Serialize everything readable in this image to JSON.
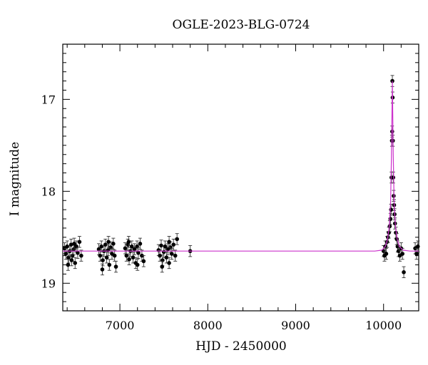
{
  "chart_data": {
    "type": "scatter",
    "title": "OGLE-2023-BLG-0724",
    "xlabel": "HJD - 2450000",
    "ylabel": "I magnitude",
    "xlim": [
      6350,
      10400
    ],
    "ylim": [
      19.3,
      16.4
    ],
    "y_inverted": true,
    "grid": false,
    "xticks": [
      7000,
      8000,
      9000,
      10000
    ],
    "xtick_labels": [
      "7000",
      "8000",
      "9000",
      "10000"
    ],
    "yticks": [
      17,
      18,
      19
    ],
    "ytick_labels": [
      "17",
      "18",
      "19"
    ],
    "colors": {
      "data": "#000000",
      "model": "#cc33cc"
    },
    "model": {
      "baseline": 18.65,
      "t0": 10100,
      "peak_mag": 16.8,
      "points": [
        [
          6350,
          18.65
        ],
        [
          9900,
          18.65
        ],
        [
          9980,
          18.64
        ],
        [
          10020,
          18.6
        ],
        [
          10045,
          18.52
        ],
        [
          10065,
          18.38
        ],
        [
          10080,
          18.12
        ],
        [
          10090,
          17.6
        ],
        [
          10095,
          17.2
        ],
        [
          10100,
          16.8
        ],
        [
          10105,
          17.2
        ],
        [
          10110,
          17.6
        ],
        [
          10120,
          18.12
        ],
        [
          10135,
          18.38
        ],
        [
          10155,
          18.52
        ],
        [
          10180,
          18.6
        ],
        [
          10220,
          18.64
        ],
        [
          10300,
          18.65
        ],
        [
          10400,
          18.65
        ]
      ]
    },
    "series": [
      {
        "points": [
          [
            6370,
            18.62
          ],
          [
            6385,
            18.68
          ],
          [
            6400,
            18.6
          ],
          [
            6415,
            18.72
          ],
          [
            6430,
            18.65
          ],
          [
            6445,
            18.58
          ],
          [
            6460,
            18.7
          ],
          [
            6475,
            18.63
          ],
          [
            6490,
            18.78
          ],
          [
            6505,
            18.6
          ],
          [
            6520,
            18.67
          ],
          [
            6540,
            18.55
          ],
          [
            6560,
            18.7
          ],
          [
            6410,
            18.8
          ],
          [
            6450,
            18.75
          ],
          [
            6480,
            18.57
          ],
          [
            6760,
            18.63
          ],
          [
            6775,
            18.7
          ],
          [
            6790,
            18.6
          ],
          [
            6805,
            18.75
          ],
          [
            6820,
            18.65
          ],
          [
            6835,
            18.58
          ],
          [
            6850,
            18.72
          ],
          [
            6865,
            18.64
          ],
          [
            6880,
            18.8
          ],
          [
            6895,
            18.61
          ],
          [
            6910,
            18.68
          ],
          [
            6925,
            18.57
          ],
          [
            6940,
            18.7
          ],
          [
            6955,
            18.82
          ],
          [
            6800,
            18.85
          ],
          [
            6870,
            18.55
          ],
          [
            7060,
            18.62
          ],
          [
            7075,
            18.7
          ],
          [
            7090,
            18.58
          ],
          [
            7105,
            18.74
          ],
          [
            7120,
            18.65
          ],
          [
            7135,
            18.6
          ],
          [
            7150,
            18.72
          ],
          [
            7165,
            18.63
          ],
          [
            7180,
            18.78
          ],
          [
            7195,
            18.6
          ],
          [
            7210,
            18.67
          ],
          [
            7230,
            18.57
          ],
          [
            7250,
            18.7
          ],
          [
            7270,
            18.76
          ],
          [
            7100,
            18.55
          ],
          [
            7200,
            18.8
          ],
          [
            7440,
            18.64
          ],
          [
            7455,
            18.7
          ],
          [
            7470,
            18.59
          ],
          [
            7485,
            18.75
          ],
          [
            7500,
            18.66
          ],
          [
            7515,
            18.6
          ],
          [
            7530,
            18.72
          ],
          [
            7545,
            18.63
          ],
          [
            7560,
            18.78
          ],
          [
            7575,
            18.61
          ],
          [
            7590,
            18.68
          ],
          [
            7610,
            18.58
          ],
          [
            7630,
            18.7
          ],
          [
            7650,
            18.52
          ],
          [
            7480,
            18.82
          ],
          [
            7560,
            18.55
          ],
          [
            7800,
            18.65
          ],
          [
            10000,
            18.65
          ],
          [
            10010,
            18.7
          ],
          [
            10020,
            18.6
          ],
          [
            10030,
            18.68
          ],
          [
            10040,
            18.55
          ],
          [
            10050,
            18.5
          ],
          [
            10060,
            18.45
          ],
          [
            10070,
            18.38
          ],
          [
            10078,
            18.3
          ],
          [
            10085,
            18.2
          ],
          [
            10090,
            17.85
          ],
          [
            10095,
            17.45
          ],
          [
            10098,
            17.35
          ],
          [
            10100,
            16.8
          ],
          [
            10103,
            16.98
          ],
          [
            10106,
            17.45
          ],
          [
            10110,
            17.85
          ],
          [
            10115,
            18.05
          ],
          [
            10120,
            18.15
          ],
          [
            10125,
            18.25
          ],
          [
            10130,
            18.35
          ],
          [
            10140,
            18.45
          ],
          [
            10150,
            18.52
          ],
          [
            10160,
            18.6
          ],
          [
            10170,
            18.65
          ],
          [
            10185,
            18.7
          ],
          [
            10200,
            18.62
          ],
          [
            10215,
            18.68
          ],
          [
            10230,
            18.88
          ],
          [
            10360,
            18.62
          ],
          [
            10375,
            18.68
          ],
          [
            10390,
            18.6
          ]
        ]
      }
    ]
  }
}
